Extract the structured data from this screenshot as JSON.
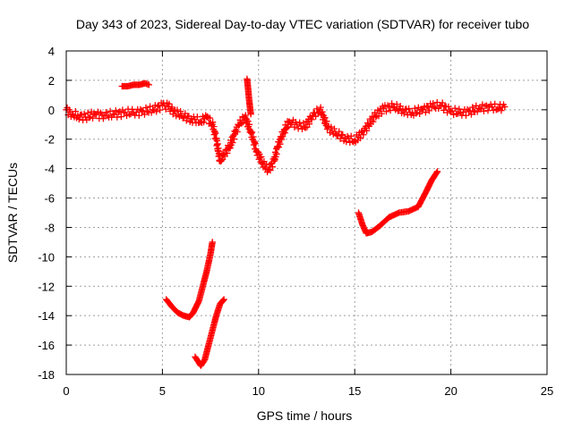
{
  "chart_data": {
    "type": "scatter",
    "title": "Day 343 of 2023, Sidereal Day-to-day VTEC variation (SDTVAR) for receiver tubo",
    "xlabel": "GPS time / hours",
    "ylabel": "SDTVAR / TECUs",
    "xlim": [
      0,
      25
    ],
    "ylim": [
      -18,
      4
    ],
    "xticks": [
      0,
      5,
      10,
      15,
      20,
      25
    ],
    "yticks": [
      -18,
      -16,
      -14,
      -12,
      -10,
      -8,
      -6,
      -4,
      -2,
      0,
      2,
      4
    ],
    "grid": true,
    "marker": "plus",
    "color": "#ff0000",
    "series": [
      {
        "name": "main-band",
        "x": [
          0.0,
          0.3,
          0.6,
          1.0,
          1.5,
          2.0,
          2.5,
          3.0,
          3.5,
          4.0,
          4.5,
          5.0,
          5.3,
          5.6,
          6.0,
          6.5,
          7.0,
          7.3,
          7.6,
          7.8,
          8.0,
          8.2,
          8.5,
          8.8,
          9.0,
          9.3,
          9.6,
          9.9,
          10.2,
          10.5,
          10.8,
          11.0,
          11.3,
          11.6,
          12.0,
          12.4,
          12.8,
          13.2,
          13.6,
          14.0,
          14.5,
          15.0,
          15.5,
          16.0,
          16.5,
          17.0,
          17.5,
          18.0,
          18.5,
          19.0,
          19.5,
          20.0,
          20.5,
          21.0,
          21.5,
          22.0,
          22.5,
          22.8
        ],
        "y": [
          0.0,
          -0.3,
          -0.4,
          -0.5,
          -0.3,
          -0.4,
          -0.3,
          -0.2,
          -0.2,
          -0.1,
          0.0,
          0.3,
          0.2,
          -0.1,
          -0.4,
          -0.6,
          -0.8,
          -0.5,
          -1.0,
          -2.0,
          -3.5,
          -3.0,
          -2.5,
          -1.5,
          -1.0,
          -0.5,
          -1.5,
          -2.8,
          -3.6,
          -4.1,
          -3.5,
          -2.5,
          -1.5,
          -0.8,
          -1.0,
          -1.2,
          -0.4,
          0.0,
          -1.2,
          -1.6,
          -1.9,
          -2.1,
          -1.4,
          -0.5,
          0.1,
          0.2,
          0.0,
          -0.2,
          0.0,
          0.2,
          0.3,
          -0.1,
          -0.2,
          -0.1,
          0.1,
          0.2,
          0.1,
          0.2
        ]
      },
      {
        "name": "segment-high",
        "x": [
          2.9,
          3.2,
          3.5,
          3.8,
          4.1,
          4.3
        ],
        "y": [
          1.6,
          1.6,
          1.7,
          1.7,
          1.8,
          1.7
        ]
      },
      {
        "name": "spike-near-9.5h",
        "x": [
          9.4,
          9.45,
          9.5,
          9.55,
          9.6
        ],
        "y": [
          2.1,
          1.5,
          0.8,
          0.2,
          -0.3
        ]
      },
      {
        "name": "segment-low-a",
        "x": [
          5.2,
          5.5,
          5.8,
          6.1,
          6.4,
          6.6,
          6.9,
          7.1,
          7.3,
          7.5,
          7.6
        ],
        "y": [
          -12.9,
          -13.4,
          -13.8,
          -14.0,
          -14.1,
          -13.8,
          -13.0,
          -12.0,
          -11.0,
          -9.8,
          -9.0
        ]
      },
      {
        "name": "segment-low-b",
        "x": [
          6.7,
          6.9,
          7.0,
          7.2,
          7.4,
          7.6,
          7.8,
          8.0,
          8.2
        ],
        "y": [
          -16.8,
          -17.2,
          -17.4,
          -17.0,
          -16.0,
          -15.0,
          -14.0,
          -13.2,
          -12.9
        ]
      },
      {
        "name": "segment-mid",
        "x": [
          15.2,
          15.4,
          15.6,
          15.9,
          16.3,
          16.8,
          17.3,
          17.8,
          18.3,
          18.7,
          19.0,
          19.3
        ],
        "y": [
          -7.0,
          -7.8,
          -8.4,
          -8.3,
          -7.9,
          -7.3,
          -7.0,
          -6.9,
          -6.6,
          -5.6,
          -4.8,
          -4.2
        ]
      }
    ]
  }
}
